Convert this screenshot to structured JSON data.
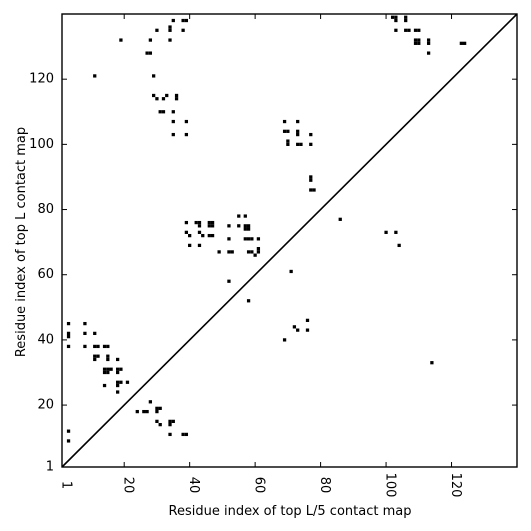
{
  "chart_data": {
    "type": "heatmap",
    "xlabel": "Residue index of top L/5 contact map",
    "ylabel": "Residue index of top L contact map",
    "xlim": [
      1,
      140
    ],
    "ylim": [
      1,
      140
    ],
    "x_ticks": [
      1,
      20,
      40,
      60,
      80,
      100,
      120
    ],
    "y_ticks": [
      1,
      20,
      40,
      60,
      80,
      100,
      120
    ],
    "x_tick_labels": [
      "1",
      "20",
      "40",
      "60",
      "80",
      "100",
      "120"
    ],
    "y_tick_labels": [
      "1",
      "20",
      "40",
      "60",
      "80",
      "100",
      "120"
    ],
    "diagonal_line": true,
    "grid": false,
    "lower_triangle_contacts": [
      [
        3,
        12
      ],
      [
        3,
        9
      ],
      [
        3,
        45
      ],
      [
        3,
        42
      ],
      [
        3,
        41
      ],
      [
        3,
        38
      ],
      [
        8,
        45
      ],
      [
        8,
        42
      ],
      [
        8,
        38
      ],
      [
        11,
        42
      ],
      [
        11,
        38
      ],
      [
        12,
        38
      ],
      [
        11,
        35
      ],
      [
        12,
        35
      ],
      [
        11,
        34
      ],
      [
        14,
        38
      ],
      [
        15,
        38
      ],
      [
        15,
        35
      ],
      [
        15,
        34
      ],
      [
        14,
        31
      ],
      [
        15,
        31
      ],
      [
        16,
        31
      ],
      [
        14,
        30
      ],
      [
        15,
        30
      ],
      [
        18,
        34
      ],
      [
        18,
        31
      ],
      [
        19,
        31
      ],
      [
        18,
        30
      ],
      [
        18,
        27
      ],
      [
        19,
        27
      ],
      [
        21,
        27
      ],
      [
        18,
        26
      ],
      [
        14,
        26
      ],
      [
        18,
        24
      ],
      [
        24,
        18
      ],
      [
        26,
        18
      ],
      [
        27,
        18
      ],
      [
        28,
        21
      ],
      [
        30,
        19
      ],
      [
        31,
        19
      ],
      [
        30,
        18
      ],
      [
        30,
        15
      ],
      [
        31,
        14
      ],
      [
        34,
        15
      ],
      [
        35,
        15
      ],
      [
        34,
        14
      ],
      [
        34,
        11
      ],
      [
        38,
        11
      ],
      [
        39,
        11
      ],
      [
        39,
        76
      ],
      [
        39,
        73
      ],
      [
        40,
        72
      ],
      [
        40,
        69
      ],
      [
        42,
        76
      ],
      [
        43,
        76
      ],
      [
        43,
        75
      ],
      [
        43,
        73
      ],
      [
        44,
        72
      ],
      [
        43,
        69
      ],
      [
        46,
        76
      ],
      [
        47,
        76
      ],
      [
        46,
        75
      ],
      [
        47,
        75
      ],
      [
        46,
        72
      ],
      [
        47,
        72
      ],
      [
        49,
        67
      ],
      [
        52,
        75
      ],
      [
        52,
        71
      ],
      [
        52,
        67
      ],
      [
        53,
        67
      ],
      [
        52,
        58
      ],
      [
        55,
        78
      ],
      [
        55,
        75
      ],
      [
        57,
        78
      ],
      [
        57,
        75
      ],
      [
        58,
        75
      ],
      [
        57,
        74
      ],
      [
        58,
        74
      ],
      [
        57,
        71
      ],
      [
        58,
        71
      ],
      [
        59,
        71
      ],
      [
        61,
        71
      ],
      [
        58,
        67
      ],
      [
        59,
        67
      ],
      [
        60,
        66
      ],
      [
        61,
        68
      ],
      [
        61,
        67
      ],
      [
        58,
        52
      ],
      [
        71,
        61
      ],
      [
        72,
        44
      ],
      [
        73,
        43
      ],
      [
        69,
        40
      ],
      [
        76,
        46
      ],
      [
        76,
        43
      ]
    ],
    "upper_triangle_contacts": [
      [
        19,
        132
      ],
      [
        28,
        132
      ],
      [
        27,
        128
      ],
      [
        28,
        128
      ],
      [
        30,
        135
      ],
      [
        34,
        136
      ],
      [
        34,
        135
      ],
      [
        35,
        138
      ],
      [
        38,
        138
      ],
      [
        39,
        138
      ],
      [
        38,
        135
      ],
      [
        34,
        132
      ],
      [
        29,
        121
      ],
      [
        29,
        115
      ],
      [
        30,
        114
      ],
      [
        32,
        114
      ],
      [
        33,
        115
      ],
      [
        36,
        115
      ],
      [
        36,
        114
      ],
      [
        31,
        110
      ],
      [
        32,
        110
      ],
      [
        35,
        110
      ],
      [
        35,
        107
      ],
      [
        39,
        107
      ],
      [
        35,
        103
      ],
      [
        39,
        103
      ],
      [
        11,
        121
      ],
      [
        69,
        107
      ],
      [
        73,
        107
      ],
      [
        69,
        104
      ],
      [
        70,
        104
      ],
      [
        73,
        104
      ],
      [
        73,
        103
      ],
      [
        77,
        103
      ],
      [
        70,
        101
      ],
      [
        70,
        100
      ],
      [
        73,
        100
      ],
      [
        74,
        100
      ],
      [
        77,
        100
      ],
      [
        77,
        90
      ],
      [
        77,
        89
      ],
      [
        77,
        86
      ],
      [
        78,
        86
      ],
      [
        86,
        77
      ],
      [
        100,
        73
      ],
      [
        103,
        73
      ],
      [
        104,
        69
      ],
      [
        102,
        139
      ],
      [
        103,
        139
      ],
      [
        103,
        138
      ],
      [
        106,
        139
      ],
      [
        106,
        138
      ],
      [
        103,
        135
      ],
      [
        106,
        135
      ],
      [
        107,
        135
      ],
      [
        109,
        135
      ],
      [
        110,
        135
      ],
      [
        109,
        132
      ],
      [
        110,
        132
      ],
      [
        113,
        132
      ],
      [
        109,
        131
      ],
      [
        110,
        131
      ],
      [
        113,
        131
      ],
      [
        113,
        128
      ],
      [
        123,
        131
      ],
      [
        124,
        131
      ],
      [
        114,
        33
      ]
    ]
  }
}
